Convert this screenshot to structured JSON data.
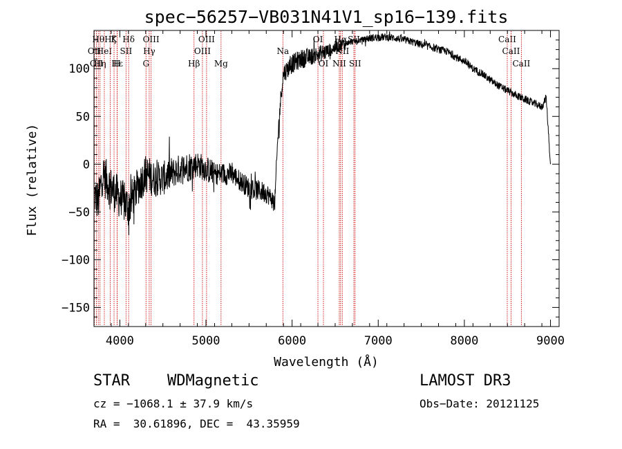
{
  "chart_data": {
    "type": "line",
    "title": "spec−56257−VB031N41V1_sp16−139.fits",
    "xlabel": "Wavelength (Å)",
    "ylabel": "Flux (relative)",
    "xlim": [
      3700,
      9100
    ],
    "ylim": [
      -170,
      140
    ],
    "xticks": [
      {
        "value": 4000,
        "label": "4000"
      },
      {
        "value": 5000,
        "label": "5000"
      },
      {
        "value": 6000,
        "label": "6000"
      },
      {
        "value": 7000,
        "label": "7000"
      },
      {
        "value": 8000,
        "label": "8000"
      },
      {
        "value": 9000,
        "label": "9000"
      }
    ],
    "yticks": [
      {
        "value": 100,
        "label": "100"
      },
      {
        "value": 50,
        "label": "50"
      },
      {
        "value": 0,
        "label": "0"
      },
      {
        "value": -50,
        "label": "−50"
      },
      {
        "value": -100,
        "label": "−100"
      },
      {
        "value": -150,
        "label": "−150"
      }
    ],
    "line_color": "#000000",
    "marker_color": "#cc0000",
    "series": [
      {
        "name": "flux",
        "noise": [
          22,
          22,
          20,
          18,
          16,
          14,
          12,
          11,
          11,
          10,
          10,
          9,
          7,
          3,
          4,
          4,
          4,
          4,
          4,
          4,
          4,
          4,
          4,
          4,
          4
        ],
        "x": [
          3700,
          3750,
          3800,
          3900,
          4000,
          4100,
          4200,
          4300,
          4400,
          4500,
          4700,
          4900,
          5100,
          5300,
          5500,
          5700,
          5800,
          5830,
          5860,
          5880,
          5900,
          5950,
          6000,
          6100,
          6200,
          6300,
          6400,
          6500,
          6600,
          6700,
          6800,
          6900,
          7000,
          7100,
          7200,
          7300,
          7400,
          7500,
          7600,
          7700,
          7800,
          7900,
          8000,
          8100,
          8200,
          8300,
          8400,
          8500,
          8600,
          8700,
          8800,
          8900,
          8950,
          9000
        ],
        "y": [
          -30,
          -40,
          -10,
          -25,
          -35,
          -45,
          -25,
          -10,
          -15,
          -15,
          -5,
          0,
          -10,
          -10,
          -25,
          -30,
          -40,
          20,
          60,
          80,
          95,
          100,
          105,
          110,
          112,
          115,
          118,
          122,
          126,
          128,
          130,
          132,
          133,
          133,
          132,
          130,
          128,
          125,
          123,
          120,
          118,
          112,
          108,
          100,
          95,
          88,
          82,
          77,
          72,
          68,
          64,
          60,
          70,
          0
        ]
      }
    ],
    "lines": [
      {
        "x": 3704,
        "label": "OII",
        "row": 2
      },
      {
        "x": 3728,
        "label": "OII",
        "row": 3
      },
      {
        "x": 3750,
        "label": "Hθ",
        "row": 1
      },
      {
        "x": 3770,
        "label": "Hη",
        "row": 3
      },
      {
        "x": 3820,
        "label": "HeI",
        "row": 2
      },
      {
        "x": 3889,
        "label": "Hζ",
        "row": 1
      },
      {
        "x": 3933,
        "label": "K",
        "row": 1
      },
      {
        "x": 3968,
        "label": "H",
        "row": 3
      },
      {
        "x": 3970,
        "label": "Hε",
        "row": 3
      },
      {
        "x": 4072,
        "label": "SII",
        "row": 2
      },
      {
        "x": 4102,
        "label": "Hδ",
        "row": 1
      },
      {
        "x": 4304,
        "label": "G",
        "row": 3
      },
      {
        "x": 4341,
        "label": "Hγ",
        "row": 2
      },
      {
        "x": 4363,
        "label": "OIII",
        "row": 1
      },
      {
        "x": 4861,
        "label": "Hβ",
        "row": 3
      },
      {
        "x": 4959,
        "label": "OIII",
        "row": 2
      },
      {
        "x": 5007,
        "label": "OIII",
        "row": 1
      },
      {
        "x": 5175,
        "label": "Mg",
        "row": 3
      },
      {
        "x": 5893,
        "label": "Na",
        "row": 2
      },
      {
        "x": 6300,
        "label": "OI",
        "row": 1
      },
      {
        "x": 6364,
        "label": "OI",
        "row": 3
      },
      {
        "x": 6548,
        "label": "NII",
        "row": 3
      },
      {
        "x": 6563,
        "label": "Hα",
        "row": 1
      },
      {
        "x": 6583,
        "label": "NII",
        "row": 2
      },
      {
        "x": 6717,
        "label": "SII",
        "row": 1
      },
      {
        "x": 6731,
        "label": "SII",
        "row": 3
      },
      {
        "x": 8498,
        "label": "CaII",
        "row": 1
      },
      {
        "x": 8542,
        "label": "CaII",
        "row": 2
      },
      {
        "x": 8662,
        "label": "CaII",
        "row": 3
      }
    ]
  },
  "footer": {
    "class_label": "STAR",
    "subclass": "WDMagnetic",
    "survey": "LAMOST DR3",
    "cz": "cz = −1068.1 ± 37.9 km/s",
    "obs_date": "Obs−Date: 20121125",
    "coords": "RA =  30.61896, DEC =  43.35959"
  }
}
